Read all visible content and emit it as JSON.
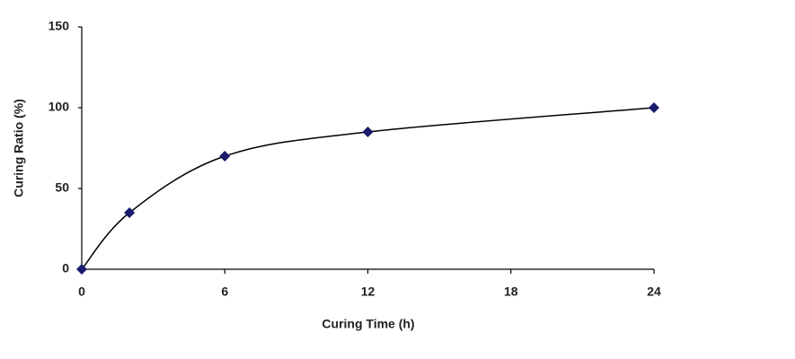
{
  "chart_data": {
    "type": "line",
    "x_label": "Curing Time (h)",
    "y_label": "Curing Ratio (%)",
    "x": [
      0,
      2,
      6,
      12,
      24
    ],
    "values": [
      0,
      35,
      70,
      85,
      100
    ],
    "color": "#1b1b6b",
    "line_color": "#000000",
    "smooth": true,
    "markers": "diamond",
    "xlim": [
      0,
      24
    ],
    "xticks": [
      0,
      6,
      12,
      18,
      24
    ],
    "ylim": [
      0,
      150
    ],
    "yticks": [
      0,
      50,
      100,
      150
    ],
    "grid": false
  }
}
